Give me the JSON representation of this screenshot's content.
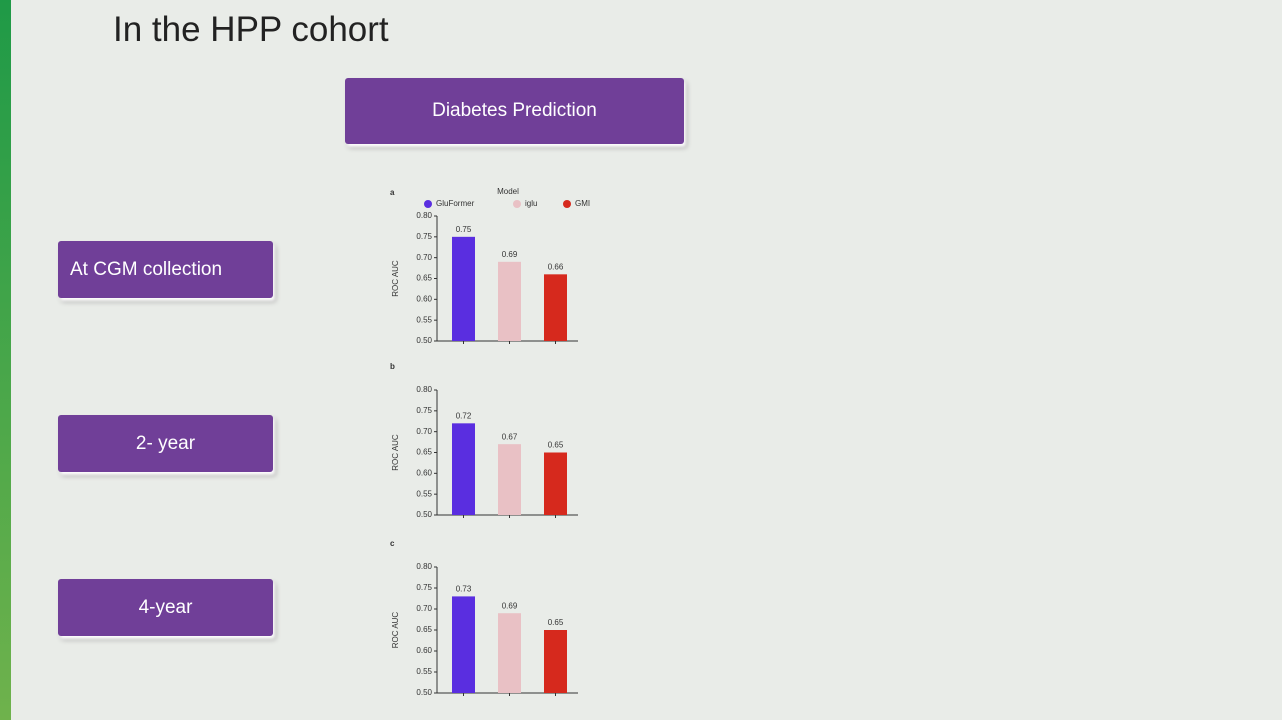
{
  "slide": {
    "title": "In the HPP cohort",
    "heading": "Diabetes Prediction",
    "rows": [
      "At CGM collection",
      "2- year",
      "4-year"
    ]
  },
  "chart_data": [
    {
      "type": "bar",
      "panel": "a",
      "legend_title": "Model",
      "categories": [
        "GluFormer",
        "iglu",
        "GMI"
      ],
      "colors": [
        "#5a2ee0",
        "#e9c1c5",
        "#d6291d"
      ],
      "values": [
        0.75,
        0.69,
        0.66
      ],
      "ylabel": "ROC AUC",
      "ylim": [
        0.5,
        0.8
      ],
      "yticks": [
        {
          "value": 0.5,
          "label": "0.50"
        },
        0.55,
        {
          "value": 0.6,
          "label": "0.60"
        },
        0.65,
        {
          "value": 0.7,
          "label": "0.70"
        },
        0.75,
        {
          "value": 0.8,
          "label": "0.80"
        }
      ]
    },
    {
      "type": "bar",
      "panel": "b",
      "colors": [
        "#5a2ee0",
        "#e9c1c5",
        "#d6291d"
      ],
      "values": [
        0.72,
        0.67,
        0.65
      ],
      "ylabel": "ROC AUC",
      "ylim": [
        0.5,
        0.8
      ],
      "yticks": [
        {
          "value": 0.5,
          "label": "0.50"
        },
        0.55,
        {
          "value": 0.6,
          "label": "0.60"
        },
        0.65,
        {
          "value": 0.7,
          "label": "0.70"
        },
        0.75,
        {
          "value": 0.8,
          "label": "0.80"
        }
      ]
    },
    {
      "type": "bar",
      "panel": "c",
      "colors": [
        "#5a2ee0",
        "#e9c1c5",
        "#d6291d"
      ],
      "values": [
        0.73,
        0.69,
        0.65
      ],
      "ylabel": "ROC AUC",
      "ylim": [
        0.5,
        0.8
      ],
      "yticks": [
        {
          "value": 0.5,
          "label": "0.50"
        },
        0.55,
        {
          "value": 0.6,
          "label": "0.60"
        },
        0.65,
        {
          "value": 0.7,
          "label": "0.70"
        },
        0.75,
        {
          "value": 0.8,
          "label": "0.80"
        }
      ]
    }
  ]
}
